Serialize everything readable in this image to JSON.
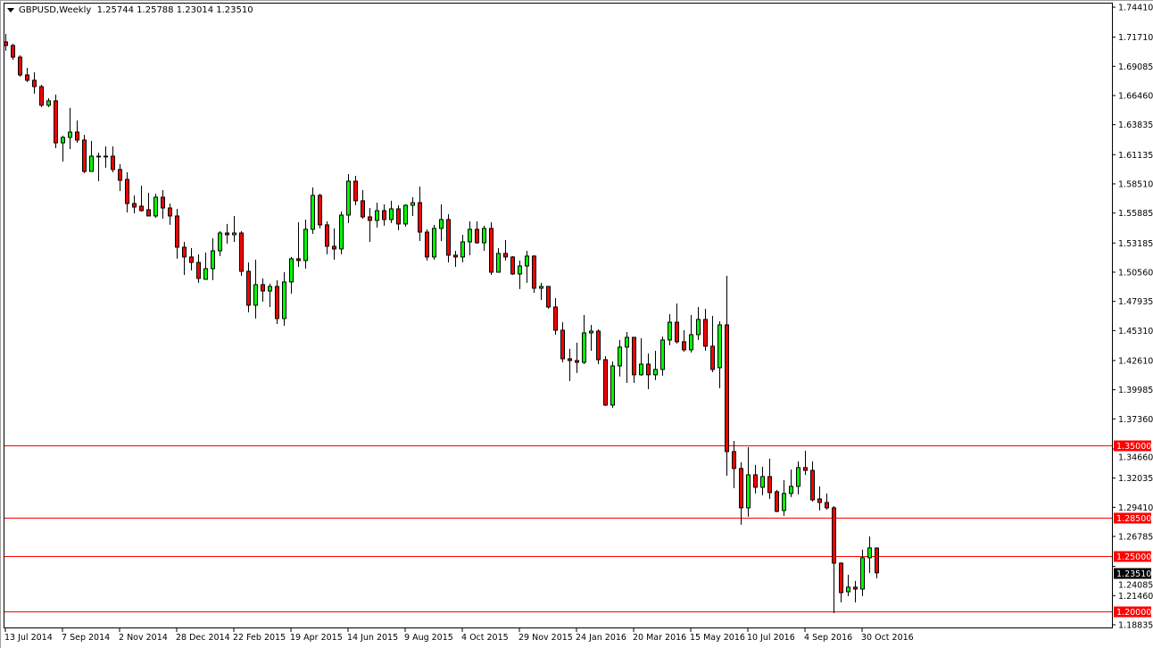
{
  "header": {
    "symbol": "GBPUSD,Weekly",
    "ohlc": "1.25744 1.25788 1.23014 1.23510"
  },
  "colors": {
    "bull": "#00ff00",
    "bear": "#ff0000",
    "level_line": "#ff0000",
    "current_price_bg": "#000000"
  },
  "chart_data": {
    "type": "candlestick",
    "title": "GBPUSD,Weekly",
    "interval": "weekly",
    "ylim": [
      1.18835,
      1.7441
    ],
    "grid": false,
    "y_ticks": [
      "1.74410",
      "1.71710",
      "1.69085",
      "1.66460",
      "1.63835",
      "1.61135",
      "1.58510",
      "1.55885",
      "1.53185",
      "1.50560",
      "1.47935",
      "1.45310",
      "1.42610",
      "1.39985",
      "1.37360",
      "1.34660",
      "1.32035",
      "1.29410",
      "1.26785",
      "1.24085",
      "1.21460",
      "1.18835"
    ],
    "x_ticks": [
      "13 Jul 2014",
      "7 Sep 2014",
      "2 Nov 2014",
      "28 Dec 2014",
      "22 Feb 2015",
      "19 Apr 2015",
      "14 Jun 2015",
      "9 Aug 2015",
      "4 Oct 2015",
      "29 Nov 2015",
      "24 Jan 2016",
      "20 Mar 2016",
      "15 May 2016",
      "10 Jul 2016",
      "4 Sep 2016",
      "30 Oct 2016"
    ],
    "levels": [
      {
        "label": "1.35000",
        "value": 1.35
      },
      {
        "label": "1.28500",
        "value": 1.285
      },
      {
        "label": "1.25000",
        "value": 1.25
      },
      {
        "label": "1.20000",
        "value": 1.2
      }
    ],
    "current_price": {
      "label": "1.23510",
      "value": 1.2351
    },
    "ohlc_fields": [
      "open",
      "high",
      "low",
      "close"
    ],
    "candles": [
      [
        1.7128,
        1.72,
        1.7048,
        1.7096
      ],
      [
        1.7096,
        1.7112,
        1.6967,
        1.6991
      ],
      [
        1.6991,
        1.7007,
        1.6815,
        1.6831
      ],
      [
        1.6831,
        1.6895,
        1.6767,
        1.6783
      ],
      [
        1.6783,
        1.6855,
        1.6662,
        1.6726
      ],
      [
        1.6726,
        1.6742,
        1.6542,
        1.6558
      ],
      [
        1.6558,
        1.6622,
        1.6542,
        1.6598
      ],
      [
        1.6598,
        1.6654,
        1.6172,
        1.622
      ],
      [
        1.622,
        1.6285,
        1.6052,
        1.6269
      ],
      [
        1.6269,
        1.6534,
        1.6164,
        1.6317
      ],
      [
        1.6317,
        1.6421,
        1.622,
        1.6245
      ],
      [
        1.6245,
        1.6293,
        1.5947,
        1.5963
      ],
      [
        1.5963,
        1.6237,
        1.5963,
        1.61
      ],
      [
        1.61,
        1.6132,
        1.5875,
        1.61
      ],
      [
        1.61,
        1.6188,
        1.5996,
        1.61
      ],
      [
        1.61,
        1.6188,
        1.5955,
        1.598
      ],
      [
        1.598,
        1.6028,
        1.5787,
        1.5883
      ],
      [
        1.5891,
        1.5955,
        1.5594,
        1.5674
      ],
      [
        1.5674,
        1.5747,
        1.5586,
        1.5642
      ],
      [
        1.565,
        1.5835,
        1.5602,
        1.561
      ],
      [
        1.5618,
        1.5771,
        1.5562,
        1.5562
      ],
      [
        1.5562,
        1.5763,
        1.5546,
        1.5731
      ],
      [
        1.5731,
        1.5795,
        1.5538,
        1.5634
      ],
      [
        1.5634,
        1.5674,
        1.5482,
        1.5562
      ],
      [
        1.5562,
        1.5626,
        1.5177,
        1.5281
      ],
      [
        1.5281,
        1.5329,
        1.5032,
        1.5193
      ],
      [
        1.5193,
        1.5273,
        1.5072,
        1.5144
      ],
      [
        1.5144,
        1.5217,
        1.496,
        1.5
      ],
      [
        1.4992,
        1.5233,
        1.4992,
        1.5088
      ],
      [
        1.5088,
        1.5361,
        1.4984,
        1.5249
      ],
      [
        1.5249,
        1.5425,
        1.5201,
        1.5409
      ],
      [
        1.5409,
        1.549,
        1.5313,
        1.5393
      ],
      [
        1.5393,
        1.5562,
        1.5329,
        1.5409
      ],
      [
        1.5409,
        1.5425,
        1.5024,
        1.5064
      ],
      [
        1.5064,
        1.5144,
        1.4695,
        1.4759
      ],
      [
        1.4759,
        1.5169,
        1.4639,
        1.4944
      ],
      [
        1.4944,
        1.5,
        1.4791,
        1.4887
      ],
      [
        1.4887,
        1.4952,
        1.4743,
        1.4928
      ],
      [
        1.4928,
        1.4984,
        1.459,
        1.4639
      ],
      [
        1.4639,
        1.5056,
        1.4574,
        1.4968
      ],
      [
        1.4968,
        1.5193,
        1.4863,
        1.5177
      ],
      [
        1.5177,
        1.5506,
        1.5104,
        1.5161
      ],
      [
        1.5161,
        1.553,
        1.5088,
        1.5442
      ],
      [
        1.5442,
        1.5819,
        1.5401,
        1.5747
      ],
      [
        1.5747,
        1.5763,
        1.545,
        1.5482
      ],
      [
        1.5482,
        1.5514,
        1.5217,
        1.5289
      ],
      [
        1.5289,
        1.545,
        1.5169,
        1.5265
      ],
      [
        1.5265,
        1.5602,
        1.5217,
        1.557
      ],
      [
        1.557,
        1.5939,
        1.5498,
        1.5875
      ],
      [
        1.5875,
        1.5923,
        1.5658,
        1.5699
      ],
      [
        1.5699,
        1.5795,
        1.5538,
        1.5554
      ],
      [
        1.5554,
        1.5634,
        1.5329,
        1.5522
      ],
      [
        1.5522,
        1.5682,
        1.5458,
        1.561
      ],
      [
        1.561,
        1.5666,
        1.5474,
        1.553
      ],
      [
        1.553,
        1.5699,
        1.5498,
        1.5626
      ],
      [
        1.5626,
        1.5658,
        1.5434,
        1.549
      ],
      [
        1.549,
        1.5666,
        1.5466,
        1.5658
      ],
      [
        1.5658,
        1.5731,
        1.5562,
        1.5682
      ],
      [
        1.5682,
        1.5827,
        1.5337,
        1.5417
      ],
      [
        1.5417,
        1.5442,
        1.5161,
        1.5193
      ],
      [
        1.5193,
        1.5482,
        1.5169,
        1.545
      ],
      [
        1.545,
        1.5666,
        1.5337,
        1.553
      ],
      [
        1.553,
        1.5578,
        1.5144,
        1.5209
      ],
      [
        1.5209,
        1.5249,
        1.5104,
        1.5193
      ],
      [
        1.5193,
        1.5393,
        1.5144,
        1.5329
      ],
      [
        1.5329,
        1.5514,
        1.5209,
        1.5442
      ],
      [
        1.5442,
        1.5514,
        1.5313,
        1.5321
      ],
      [
        1.5321,
        1.5474,
        1.5249,
        1.545
      ],
      [
        1.545,
        1.5506,
        1.5032,
        1.5056
      ],
      [
        1.5056,
        1.5273,
        1.5056,
        1.5225
      ],
      [
        1.5225,
        1.5345,
        1.5161,
        1.5193
      ],
      [
        1.5193,
        1.5201,
        1.5032,
        1.504
      ],
      [
        1.504,
        1.5161,
        1.4904,
        1.5112
      ],
      [
        1.5112,
        1.5249,
        1.496,
        1.5201
      ],
      [
        1.5201,
        1.5209,
        1.4871,
        1.4912
      ],
      [
        1.4912,
        1.496,
        1.4807,
        1.4928
      ],
      [
        1.4928,
        1.4928,
        1.4727,
        1.4743
      ],
      [
        1.4743,
        1.4823,
        1.4494,
        1.4534
      ],
      [
        1.4534,
        1.4606,
        1.4245,
        1.4277
      ],
      [
        1.4277,
        1.4366,
        1.4076,
        1.4261
      ],
      [
        1.4261,
        1.4422,
        1.4149,
        1.4245
      ],
      [
        1.4245,
        1.4671,
        1.4229,
        1.451
      ],
      [
        1.451,
        1.4582,
        1.4349,
        1.4526
      ],
      [
        1.4526,
        1.4542,
        1.4229,
        1.4269
      ],
      [
        1.4269,
        1.4301,
        1.3852,
        1.386
      ],
      [
        1.386,
        1.4253,
        1.3836,
        1.4213
      ],
      [
        1.4213,
        1.4446,
        1.4117,
        1.4382
      ],
      [
        1.4382,
        1.4518,
        1.406,
        1.447
      ],
      [
        1.447,
        1.447,
        1.406,
        1.4133
      ],
      [
        1.4133,
        1.4462,
        1.4125,
        1.4229
      ],
      [
        1.4229,
        1.4325,
        1.4004,
        1.4133
      ],
      [
        1.4133,
        1.4349,
        1.4085,
        1.4181
      ],
      [
        1.4181,
        1.4478,
        1.4125,
        1.4446
      ],
      [
        1.4446,
        1.4679,
        1.4398,
        1.4606
      ],
      [
        1.4606,
        1.4775,
        1.4414,
        1.443
      ],
      [
        1.443,
        1.4534,
        1.4341,
        1.4358
      ],
      [
        1.4358,
        1.4671,
        1.4333,
        1.4494
      ],
      [
        1.4494,
        1.4743,
        1.4446,
        1.4631
      ],
      [
        1.4631,
        1.4727,
        1.4349,
        1.439
      ],
      [
        1.439,
        1.4663,
        1.4157,
        1.4181
      ],
      [
        1.4197,
        1.4614,
        1.4012,
        1.4582
      ],
      [
        1.4582,
        1.5024,
        1.3225,
        1.3442
      ],
      [
        1.3442,
        1.3538,
        1.3113,
        1.329
      ],
      [
        1.329,
        1.3346,
        1.2784,
        1.2936
      ],
      [
        1.2936,
        1.3482,
        1.2856,
        1.3233
      ],
      [
        1.3233,
        1.3322,
        1.3065,
        1.3121
      ],
      [
        1.3121,
        1.3306,
        1.3049,
        1.3217
      ],
      [
        1.3217,
        1.3378,
        1.3016,
        1.3073
      ],
      [
        1.3081,
        1.3097,
        1.2896,
        1.2904
      ],
      [
        1.2912,
        1.3185,
        1.2864,
        1.3065
      ],
      [
        1.3065,
        1.3281,
        1.3033,
        1.3129
      ],
      [
        1.3129,
        1.3354,
        1.3057,
        1.3298
      ],
      [
        1.3298,
        1.345,
        1.3233,
        1.3273
      ],
      [
        1.3273,
        1.3354,
        1.2992,
        1.3008
      ],
      [
        1.3016,
        1.3129,
        1.2912,
        1.2984
      ],
      [
        1.2984,
        1.3065,
        1.292,
        1.2936
      ],
      [
        1.2936,
        1.2952,
        1.1989,
        1.2438
      ],
      [
        1.2438,
        1.2446,
        1.2085,
        1.2173
      ],
      [
        1.2181,
        1.2334,
        1.2141,
        1.2222
      ],
      [
        1.2222,
        1.2278,
        1.2085,
        1.2205
      ],
      [
        1.2205,
        1.2559,
        1.2141,
        1.2487
      ],
      [
        1.2487,
        1.2679,
        1.235,
        1.2575
      ],
      [
        1.25744,
        1.25788,
        1.23014,
        1.2351
      ]
    ]
  }
}
